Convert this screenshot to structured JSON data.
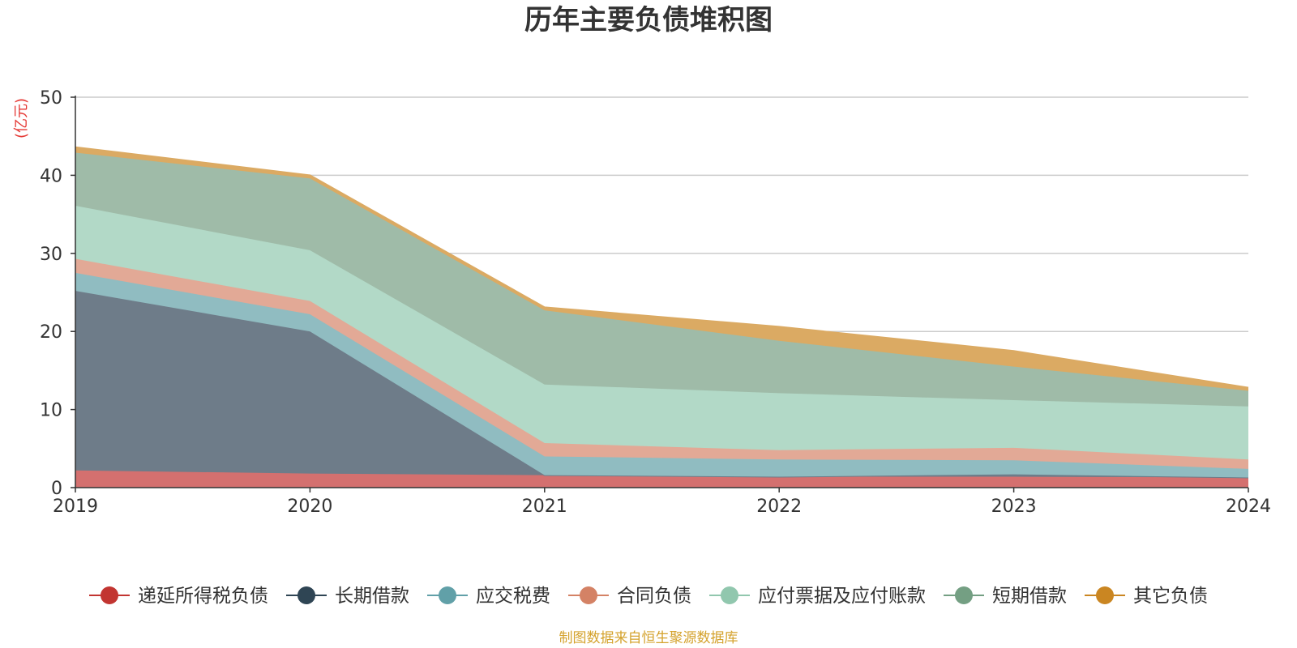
{
  "chart_data": {
    "type": "area",
    "stacked": true,
    "title": "历年主要负债堆积图",
    "unit_label": "(亿元)",
    "source_note": "制图数据来自恒生聚源数据库",
    "x": [
      "2019",
      "2020",
      "2021",
      "2022",
      "2023",
      "2024"
    ],
    "ylim": [
      0,
      50
    ],
    "yticks": [
      0,
      10,
      20,
      30,
      40,
      50
    ],
    "grid": true,
    "legend_position": "bottom",
    "series": [
      {
        "name": "递延所得税负债",
        "values": [
          2.2,
          1.8,
          1.6,
          1.4,
          1.4,
          1.3
        ],
        "color": "#c23531",
        "area_color": "#d4706f"
      },
      {
        "name": "长期借款",
        "values": [
          23.0,
          18.2,
          0.0,
          0.0,
          0.3,
          0.0
        ],
        "color": "#2f4554",
        "area_color": "#6e7c89"
      },
      {
        "name": "应交税费",
        "values": [
          2.3,
          2.2,
          2.4,
          2.2,
          1.8,
          1.1
        ],
        "color": "#61a0a8",
        "area_color": "#90bcc1"
      },
      {
        "name": "合同负债",
        "values": [
          1.8,
          1.7,
          1.7,
          1.2,
          1.6,
          1.2
        ],
        "color": "#d48265",
        "area_color": "#e2a996"
      },
      {
        "name": "应付票据及应付账款",
        "values": [
          6.8,
          6.5,
          7.5,
          7.3,
          6.1,
          6.8
        ],
        "color": "#91c7ae",
        "area_color": "#b2d9c7"
      },
      {
        "name": "短期借款",
        "values": [
          6.8,
          9.2,
          9.5,
          6.7,
          4.3,
          2.0
        ],
        "color": "#749f83",
        "area_color": "#9fbba8"
      },
      {
        "name": "其它负债",
        "values": [
          0.7,
          0.4,
          0.4,
          1.8,
          2.0,
          0.4
        ],
        "color": "#ca8622",
        "area_color": "#dbaa63"
      }
    ]
  }
}
